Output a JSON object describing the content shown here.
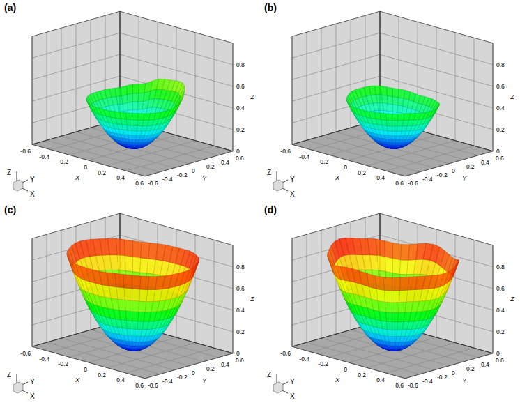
{
  "chart_data": [
    {
      "type": "surface3d",
      "title": "(a)",
      "xlim": [
        -0.6,
        0.6
      ],
      "ylim": [
        -0.6,
        0.6
      ],
      "zlim": [
        0,
        1
      ],
      "xticks": [
        -0.6,
        -0.4,
        -0.2,
        0,
        0.2,
        0.4,
        0.6
      ],
      "yticks": [
        -0.6,
        -0.4,
        -0.2,
        0,
        0.2,
        0.4,
        0.6
      ],
      "zticks": [
        0,
        0.2,
        0.4,
        0.6,
        0.8
      ],
      "axis_labels": {
        "x": "X",
        "y": "Y",
        "z": "Z"
      },
      "grid": true,
      "colormap": [
        "#0000ff",
        "#00ffff",
        "#00ff00",
        "#ffff00",
        "#ff0000"
      ],
      "color_range": [
        0,
        0.85
      ],
      "bowl_curvature": 2.8,
      "rim_angles_deg": [
        0,
        30,
        60,
        90,
        120,
        150,
        180,
        210,
        240,
        270,
        300,
        330
      ],
      "rim_z": [
        0.45,
        0.5,
        0.58,
        0.55,
        0.47,
        0.43,
        0.42,
        0.42,
        0.42,
        0.43,
        0.44,
        0.44
      ]
    },
    {
      "type": "surface3d",
      "title": "(b)",
      "xlim": [
        -0.6,
        0.6
      ],
      "ylim": [
        -0.6,
        0.6
      ],
      "zlim": [
        0,
        1
      ],
      "xticks": [
        -0.6,
        -0.4,
        -0.2,
        0,
        0.2,
        0.4,
        0.6
      ],
      "yticks": [
        -0.6,
        -0.4,
        -0.2,
        0,
        0.2,
        0.4,
        0.6
      ],
      "zticks": [
        0,
        0.2,
        0.4,
        0.6,
        0.8
      ],
      "axis_labels": {
        "x": "X",
        "y": "Y",
        "z": "Z"
      },
      "grid": true,
      "colormap": [
        "#0000ff",
        "#00ffff",
        "#00ff00",
        "#ffff00",
        "#ff0000"
      ],
      "color_range": [
        0,
        0.85
      ],
      "bowl_curvature": 2.8,
      "rim_angles_deg": [
        0,
        30,
        60,
        90,
        120,
        150,
        180,
        210,
        240,
        270,
        300,
        330
      ],
      "rim_z": [
        0.43,
        0.44,
        0.42,
        0.41,
        0.43,
        0.45,
        0.44,
        0.42,
        0.41,
        0.42,
        0.43,
        0.44
      ]
    },
    {
      "type": "surface3d",
      "title": "(c)",
      "xlim": [
        -0.6,
        0.6
      ],
      "ylim": [
        -0.6,
        0.6
      ],
      "zlim": [
        0,
        1
      ],
      "xticks": [
        -0.6,
        -0.4,
        -0.2,
        0,
        0.2,
        0.4,
        0.6
      ],
      "yticks": [
        -0.6,
        -0.4,
        -0.2,
        0,
        0.2,
        0.4,
        0.6
      ],
      "zticks": [
        0,
        0.2,
        0.4,
        0.6,
        0.8
      ],
      "axis_labels": {
        "x": "X",
        "y": "Y",
        "z": "Z"
      },
      "grid": true,
      "colormap": [
        "#0000ff",
        "#00ffff",
        "#00ff00",
        "#ffff00",
        "#ff0000"
      ],
      "color_range": [
        0,
        0.85
      ],
      "bowl_curvature": 2.8,
      "rim_angles_deg": [
        0,
        30,
        60,
        90,
        120,
        150,
        180,
        210,
        240,
        270,
        300,
        330
      ],
      "rim_z": [
        0.86,
        0.88,
        0.87,
        0.85,
        0.84,
        0.86,
        0.87,
        0.85,
        0.84,
        0.85,
        0.86,
        0.85
      ]
    },
    {
      "type": "surface3d",
      "title": "(d)",
      "xlim": [
        -0.6,
        0.6
      ],
      "ylim": [
        -0.6,
        0.6
      ],
      "zlim": [
        0,
        1
      ],
      "xticks": [
        -0.6,
        -0.4,
        -0.2,
        0,
        0.2,
        0.4,
        0.6
      ],
      "yticks": [
        -0.6,
        -0.4,
        -0.2,
        0,
        0.2,
        0.4,
        0.6
      ],
      "zticks": [
        0,
        0.2,
        0.4,
        0.6,
        0.8
      ],
      "axis_labels": {
        "x": "X",
        "y": "Y",
        "z": "Z"
      },
      "grid": true,
      "colormap": [
        "#0000ff",
        "#00ffff",
        "#00ff00",
        "#ffff00",
        "#ff0000"
      ],
      "color_range": [
        0,
        0.85
      ],
      "bowl_curvature": 2.8,
      "rim_angles_deg": [
        0,
        30,
        60,
        90,
        120,
        150,
        180,
        210,
        240,
        270,
        300,
        330
      ],
      "rim_z": [
        0.84,
        0.88,
        0.83,
        0.87,
        0.82,
        0.86,
        0.89,
        0.84,
        0.82,
        0.86,
        0.83,
        0.85
      ]
    }
  ]
}
